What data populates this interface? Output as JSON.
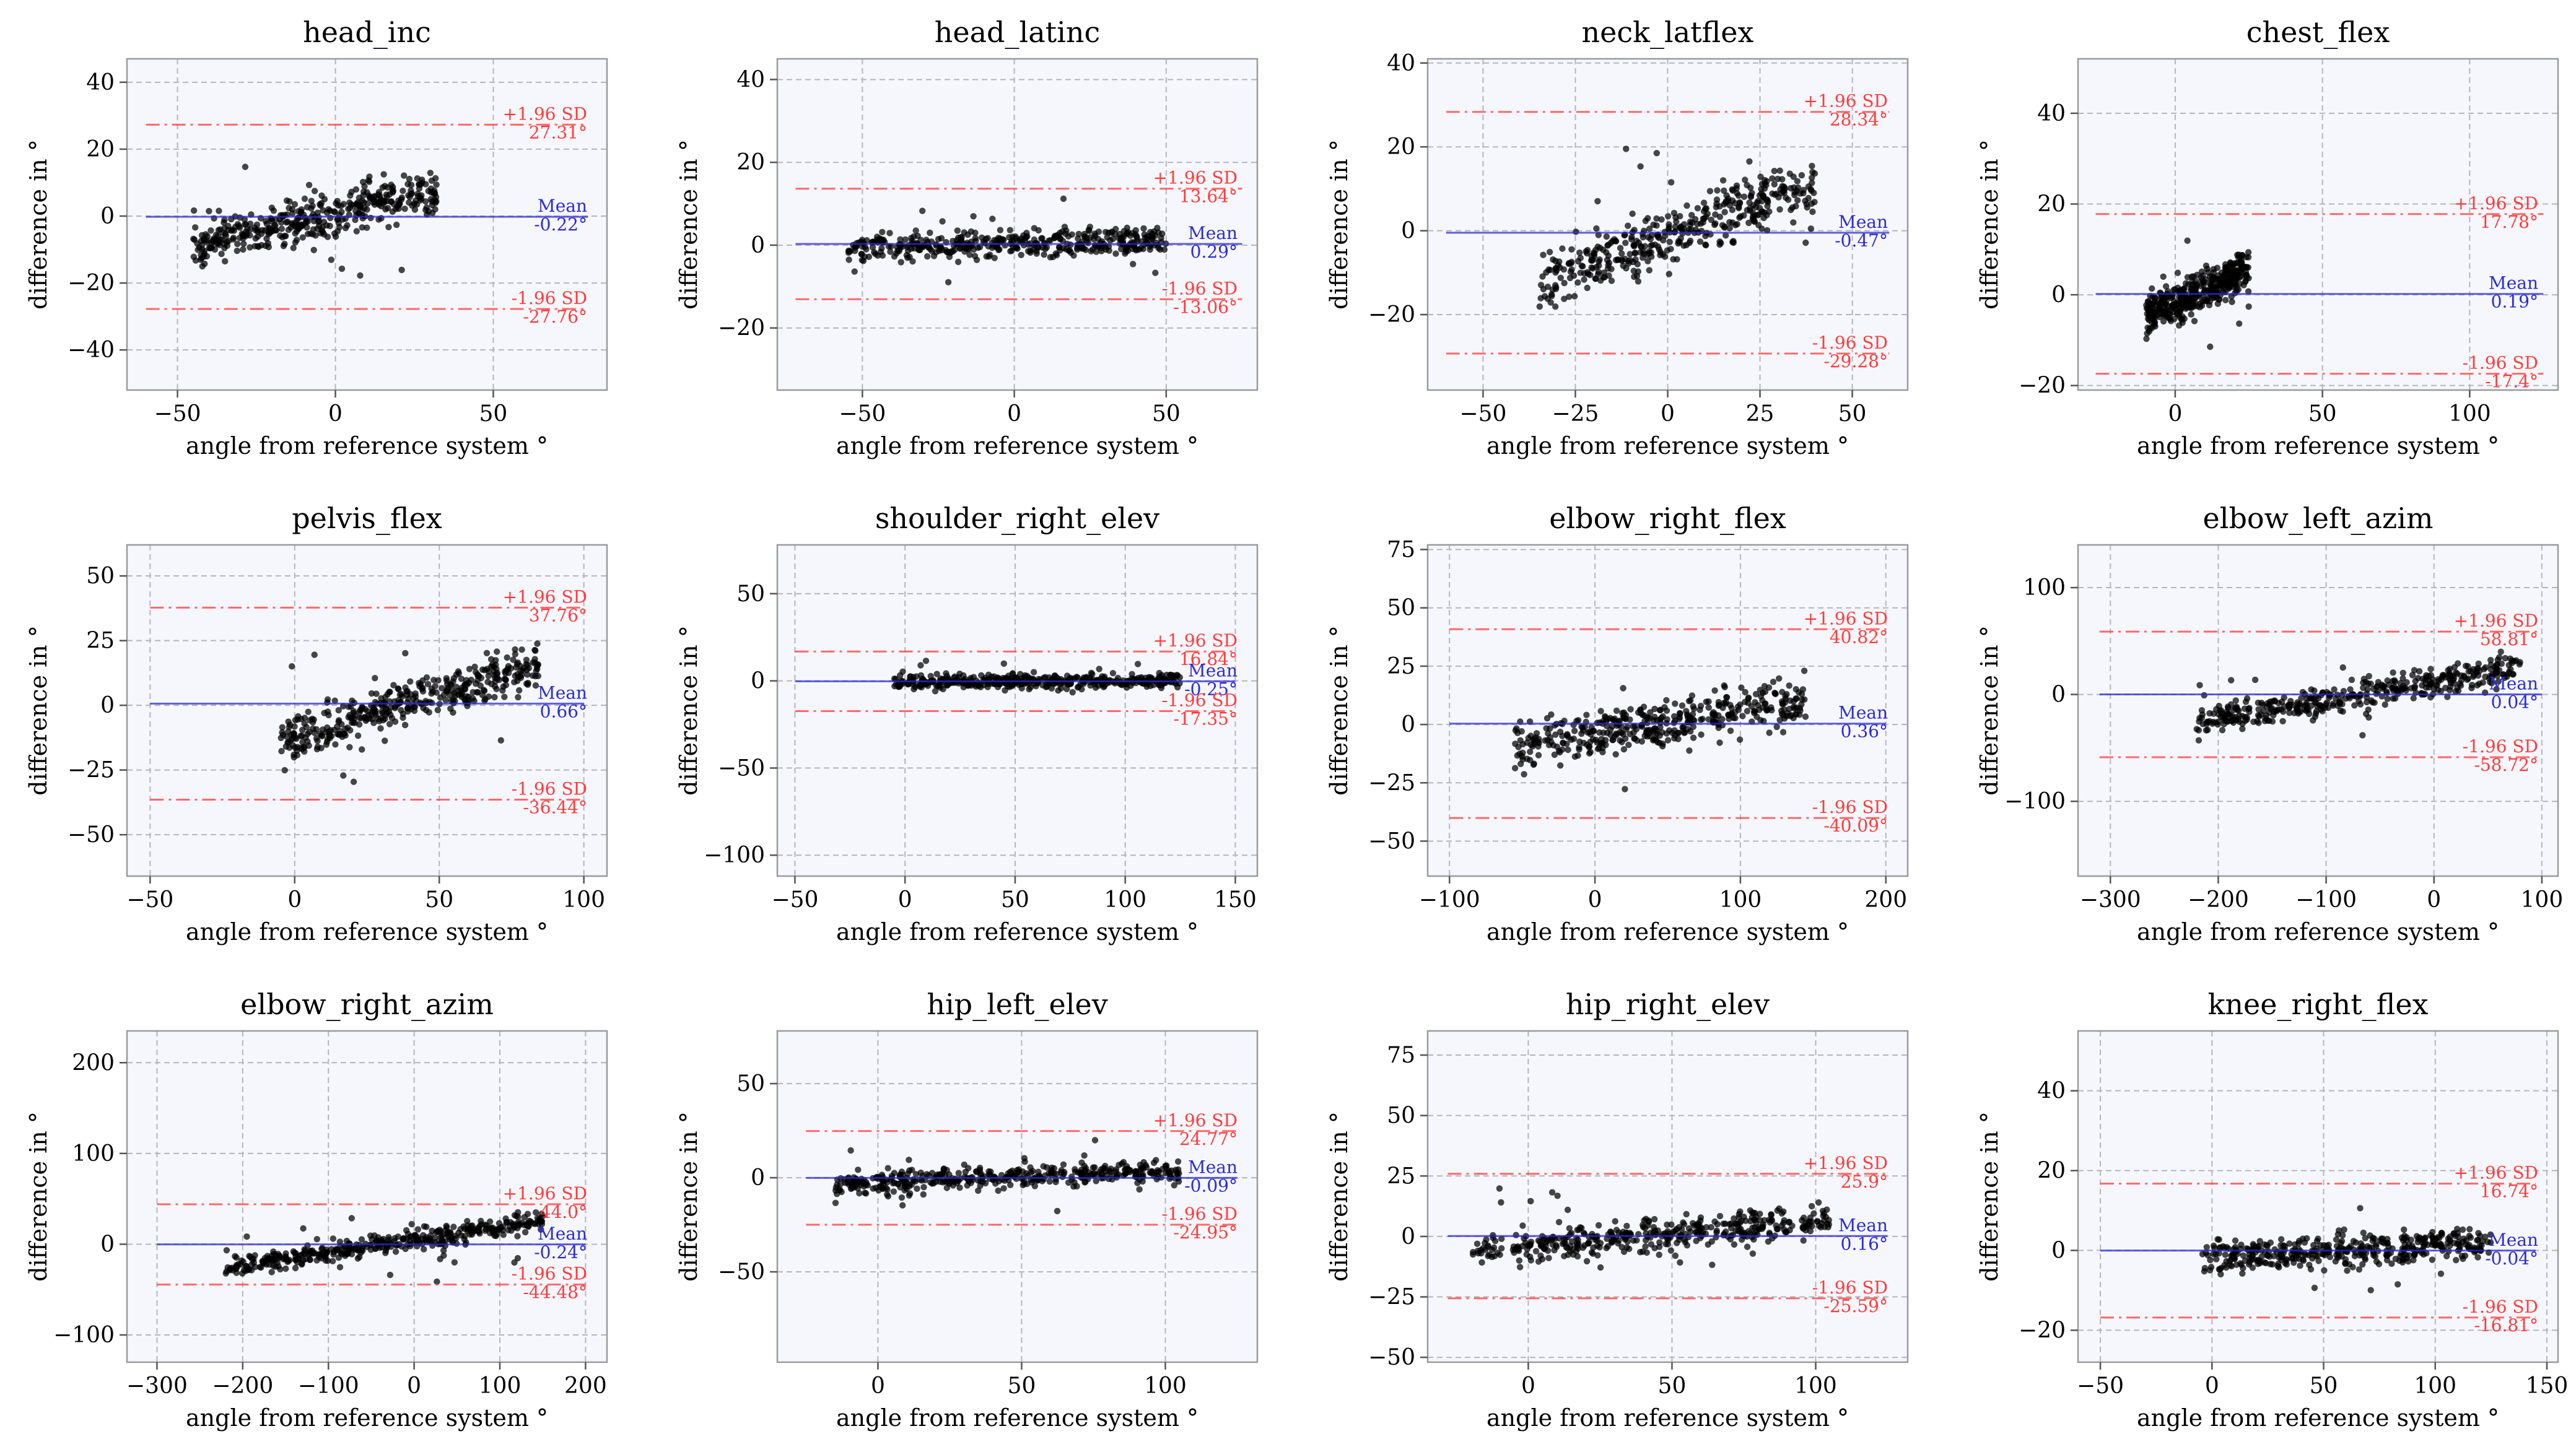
{
  "figure": {
    "colors": {
      "mean": "#2b2bd6",
      "limit": "#ff3b3b",
      "points": "#000000",
      "plot_bg": "#f6f7fd",
      "grid": "#b5b5bb",
      "frame": "#9a9a9a"
    }
  },
  "chart_data": [
    {
      "type": "scatter",
      "title": "head_inc",
      "xlabel": "angle from reference system °",
      "ylabel": "difference in °",
      "xlim": [
        -66,
        86
      ],
      "ylim": [
        -52,
        47
      ],
      "xticks": [
        -50,
        0,
        50
      ],
      "yticks": [
        -40,
        -20,
        0,
        20,
        40
      ],
      "mean": -0.22,
      "upper": 27.31,
      "lower": -27.76,
      "mean_label": "Mean",
      "mean_value_label": "-0.22°",
      "upper_label": "+1.96 SD",
      "upper_value_label": "27.31°",
      "lower_label": "-1.96 SD",
      "lower_value_label": "-27.76°",
      "line_x": [
        -60,
        80
      ],
      "cloud_x": [
        -45,
        32
      ],
      "slope": 0.6
    },
    {
      "type": "scatter",
      "title": "head_latinc",
      "xlabel": "angle from reference system °",
      "ylabel": "difference in °",
      "xlim": [
        -78,
        80
      ],
      "ylim": [
        -35,
        45
      ],
      "xticks": [
        -50,
        0,
        50
      ],
      "yticks": [
        -20,
        0,
        20,
        40
      ],
      "mean": 0.29,
      "upper": 13.64,
      "lower": -13.06,
      "mean_label": "Mean",
      "mean_value_label": "0.29°",
      "upper_label": "+1.96 SD",
      "upper_value_label": "13.64°",
      "lower_label": "-1.96 SD",
      "lower_value_label": "-13.06°",
      "line_x": [
        -72,
        75
      ],
      "cloud_x": [
        -55,
        50
      ],
      "slope": 0.05
    },
    {
      "type": "scatter",
      "title": "neck_latflex",
      "xlabel": "angle from reference system °",
      "ylabel": "difference in °",
      "xlim": [
        -65,
        65
      ],
      "ylim": [
        -38,
        41
      ],
      "xticks": [
        -50,
        -25,
        0,
        25,
        50
      ],
      "yticks": [
        -20,
        0,
        20,
        40
      ],
      "mean": -0.47,
      "upper": 28.34,
      "lower": -29.28,
      "mean_label": "Mean",
      "mean_value_label": "-0.47°",
      "upper_label": "+1.96 SD",
      "upper_value_label": "28.34°",
      "lower_label": "-1.96 SD",
      "lower_value_label": "-29.28°",
      "line_x": [
        -60,
        60
      ],
      "cloud_x": [
        -35,
        40
      ],
      "slope": 0.9
    },
    {
      "type": "scatter",
      "title": "chest_flex",
      "xlabel": "angle from reference system °",
      "ylabel": "difference in °",
      "xlim": [
        -33,
        130
      ],
      "ylim": [
        -21,
        52
      ],
      "xticks": [
        0,
        50,
        100
      ],
      "yticks": [
        -20,
        0,
        20,
        40
      ],
      "mean": 0.19,
      "upper": 17.78,
      "lower": -17.4,
      "mean_label": "Mean",
      "mean_value_label": "0.19°",
      "upper_label": "+1.96 SD",
      "upper_value_label": "17.78°",
      "lower_label": "-1.96 SD",
      "lower_value_label": "-17.4°",
      "line_x": [
        -27,
        125
      ],
      "cloud_x": [
        -10,
        25
      ],
      "slope": 0.85
    },
    {
      "type": "scatter",
      "title": "pelvis_flex",
      "xlabel": "angle from reference system °",
      "ylabel": "difference in °",
      "xlim": [
        -58,
        108
      ],
      "ylim": [
        -66,
        62
      ],
      "xticks": [
        -50,
        0,
        50,
        100
      ],
      "yticks": [
        -50,
        -25,
        0,
        25,
        50
      ],
      "mean": 0.66,
      "upper": 37.76,
      "lower": -36.44,
      "mean_label": "Mean",
      "mean_value_label": "0.66°",
      "upper_label": "+1.96 SD",
      "upper_value_label": "37.76°",
      "lower_label": "-1.96 SD",
      "lower_value_label": "-36.44°",
      "line_x": [
        -50,
        100
      ],
      "cloud_x": [
        -5,
        85
      ],
      "slope": 1.0
    },
    {
      "type": "scatter",
      "title": "shoulder_right_elev",
      "xlabel": "angle from reference system °",
      "ylabel": "difference in °",
      "xlim": [
        -58,
        160
      ],
      "ylim": [
        -112,
        78
      ],
      "xticks": [
        -50,
        0,
        50,
        100,
        150
      ],
      "yticks": [
        -100,
        -50,
        0,
        50
      ],
      "mean": -0.25,
      "upper": 16.84,
      "lower": -17.35,
      "mean_label": "Mean",
      "mean_value_label": "-0.25°",
      "upper_label": "+1.96 SD",
      "upper_value_label": "16.84°",
      "lower_label": "-1.96 SD",
      "lower_value_label": "-17.35°",
      "line_x": [
        -50,
        150
      ],
      "cloud_x": [
        -5,
        125
      ],
      "slope": 0.02
    },
    {
      "type": "scatter",
      "title": "elbow_right_flex",
      "xlabel": "angle from reference system °",
      "ylabel": "difference in °",
      "xlim": [
        -115,
        215
      ],
      "ylim": [
        -65,
        77
      ],
      "xticks": [
        -100,
        0,
        100,
        200
      ],
      "yticks": [
        -50,
        -25,
        0,
        25,
        50,
        75
      ],
      "mean": 0.36,
      "upper": 40.82,
      "lower": -40.09,
      "mean_label": "Mean",
      "mean_value_label": "0.36°",
      "upper_label": "+1.96 SD",
      "upper_value_label": "40.82°",
      "lower_label": "-1.96 SD",
      "lower_value_label": "-40.09°",
      "line_x": [
        -100,
        200
      ],
      "cloud_x": [
        -55,
        145
      ],
      "slope": 0.3
    },
    {
      "type": "scatter",
      "title": "elbow_left_azim",
      "xlabel": "angle from reference system °",
      "ylabel": "difference in °",
      "xlim": [
        -330,
        115
      ],
      "ylim": [
        -170,
        140
      ],
      "xticks": [
        -300,
        -200,
        -100,
        0,
        100
      ],
      "yticks": [
        -100,
        0,
        100
      ],
      "mean": 0.04,
      "upper": 58.81,
      "lower": -58.72,
      "mean_label": "Mean",
      "mean_value_label": "0.04°",
      "upper_label": "+1.96 SD",
      "upper_value_label": "58.81°",
      "lower_label": "-1.96 SD",
      "lower_value_label": "-58.72°",
      "line_x": [
        -310,
        100
      ],
      "cloud_x": [
        -220,
        80
      ],
      "slope": 0.5
    },
    {
      "type": "scatter",
      "title": "elbow_right_azim",
      "xlabel": "angle from reference system °",
      "ylabel": "difference in °",
      "xlim": [
        -335,
        225
      ],
      "ylim": [
        -130,
        235
      ],
      "xticks": [
        -300,
        -200,
        -100,
        0,
        100,
        200
      ],
      "yticks": [
        -100,
        0,
        100,
        200
      ],
      "mean": -0.24,
      "upper": 44.0,
      "lower": -44.48,
      "mean_label": "Mean",
      "mean_value_label": "-0.24°",
      "upper_label": "+1.96 SD",
      "upper_value_label": "44.0°",
      "lower_label": "-1.96 SD",
      "lower_value_label": "-44.48°",
      "line_x": [
        -300,
        200
      ],
      "cloud_x": [
        -220,
        150
      ],
      "slope": 0.4
    },
    {
      "type": "scatter",
      "title": "hip_left_elev",
      "xlabel": "angle from reference system °",
      "ylabel": "difference in °",
      "xlim": [
        -35,
        132
      ],
      "ylim": [
        -98,
        78
      ],
      "xticks": [
        0,
        50,
        100
      ],
      "yticks": [
        -50,
        0,
        50
      ],
      "mean": -0.09,
      "upper": 24.77,
      "lower": -24.95,
      "mean_label": "Mean",
      "mean_value_label": "-0.09°",
      "upper_label": "+1.96 SD",
      "upper_value_label": "24.77°",
      "lower_label": "-1.96 SD",
      "lower_value_label": "-24.95°",
      "line_x": [
        -25,
        125
      ],
      "cloud_x": [
        -15,
        105
      ],
      "slope": 0.15
    },
    {
      "type": "scatter",
      "title": "hip_right_elev",
      "xlabel": "angle from reference system °",
      "ylabel": "difference in °",
      "xlim": [
        -35,
        132
      ],
      "ylim": [
        -52,
        85
      ],
      "xticks": [
        0,
        50,
        100
      ],
      "yticks": [
        -50,
        -25,
        0,
        25,
        50,
        75
      ],
      "mean": 0.16,
      "upper": 25.9,
      "lower": -25.59,
      "mean_label": "Mean",
      "mean_value_label": "0.16°",
      "upper_label": "+1.96 SD",
      "upper_value_label": "25.9°",
      "lower_label": "-1.96 SD",
      "lower_value_label": "-25.59°",
      "line_x": [
        -28,
        125
      ],
      "cloud_x": [
        -20,
        105
      ],
      "slope": 0.3
    },
    {
      "type": "scatter",
      "title": "knee_right_flex",
      "xlabel": "angle from reference system °",
      "ylabel": "difference in °",
      "xlim": [
        -60,
        155
      ],
      "ylim": [
        -28,
        55
      ],
      "xticks": [
        -50,
        0,
        50,
        100,
        150
      ],
      "yticks": [
        -20,
        0,
        20,
        40
      ],
      "mean": -0.04,
      "upper": 16.74,
      "lower": -16.81,
      "mean_label": "Mean",
      "mean_value_label": "-0.04°",
      "upper_label": "+1.96 SD",
      "upper_value_label": "16.74°",
      "lower_label": "-1.96 SD",
      "lower_value_label": "-16.81°",
      "line_x": [
        -50,
        145
      ],
      "cloud_x": [
        -5,
        125
      ],
      "slope": 0.1
    }
  ]
}
